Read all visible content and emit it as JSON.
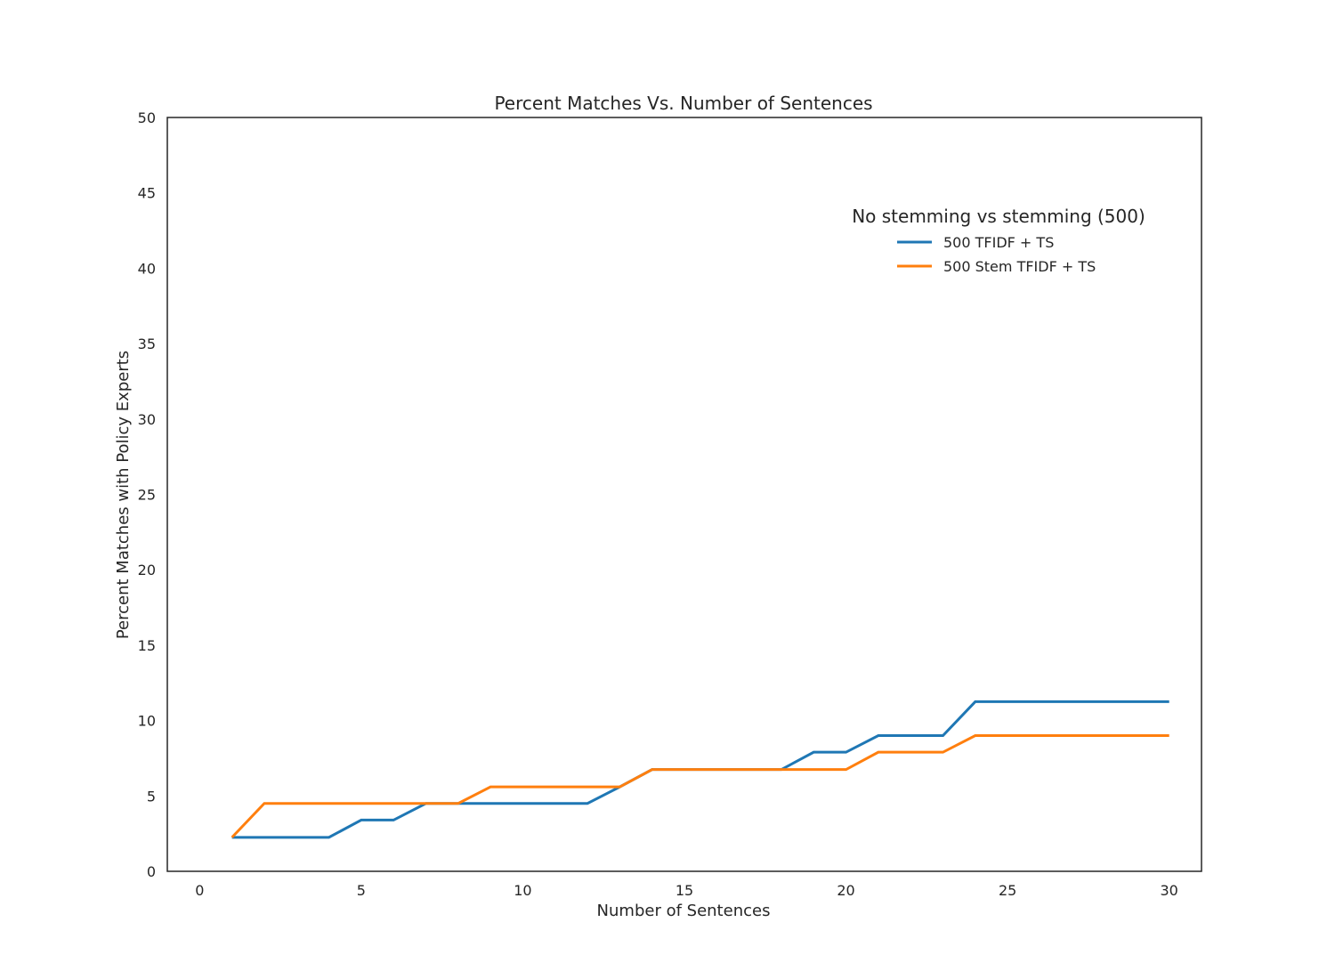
{
  "chart_data": {
    "type": "line",
    "title": "Percent Matches Vs. Number of Sentences",
    "xlabel": "Number of Sentences",
    "ylabel": "Percent Matches with Policy Experts",
    "xlim": [
      -1,
      31
    ],
    "ylim": [
      0,
      50
    ],
    "xticks": [
      0,
      5,
      10,
      15,
      20,
      25,
      30
    ],
    "yticks": [
      0,
      5,
      10,
      15,
      20,
      25,
      30,
      35,
      40,
      45,
      50
    ],
    "grid": false,
    "legend": {
      "title": "No stemming vs stemming (500)",
      "placement": "upper-right"
    },
    "x": [
      1,
      2,
      3,
      4,
      5,
      6,
      7,
      8,
      9,
      10,
      11,
      12,
      13,
      14,
      15,
      16,
      17,
      18,
      19,
      20,
      21,
      22,
      23,
      24,
      25,
      26,
      27,
      28,
      29,
      30
    ],
    "series": [
      {
        "name": "500 TFIDF + TS",
        "color": "#1f77b4",
        "values": [
          2.25,
          2.25,
          2.25,
          2.25,
          3.4,
          3.4,
          4.5,
          4.5,
          4.5,
          4.5,
          4.5,
          4.5,
          5.6,
          6.75,
          6.75,
          6.75,
          6.75,
          6.75,
          7.9,
          7.9,
          9.0,
          9.0,
          9.0,
          11.25,
          11.25,
          11.25,
          11.25,
          11.25,
          11.25,
          11.25
        ]
      },
      {
        "name": "500 Stem TFIDF + TS",
        "color": "#ff7f0e",
        "values": [
          2.25,
          4.5,
          4.5,
          4.5,
          4.5,
          4.5,
          4.5,
          4.5,
          5.6,
          5.6,
          5.6,
          5.6,
          5.6,
          6.75,
          6.75,
          6.75,
          6.75,
          6.75,
          6.75,
          6.75,
          7.9,
          7.9,
          7.9,
          9.0,
          9.0,
          9.0,
          9.0,
          9.0,
          9.0,
          9.0
        ]
      }
    ]
  }
}
